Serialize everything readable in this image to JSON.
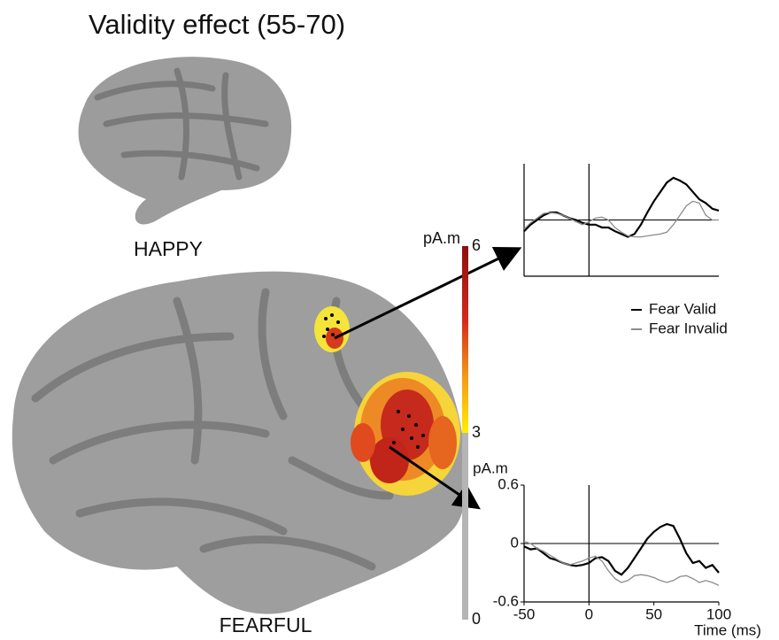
{
  "title": "Validity effect (55-70)",
  "brain_labels": [
    "HAPPY",
    "FEARFUL"
  ],
  "colorbar": {
    "label": "pA.m",
    "lim": [
      0,
      6
    ],
    "ticks": [
      0,
      3,
      6
    ]
  },
  "chart_data": [
    {
      "type": "line",
      "x": [
        -50,
        -45,
        -40,
        -35,
        -30,
        -25,
        -20,
        -15,
        -10,
        -5,
        0,
        5,
        10,
        15,
        20,
        25,
        30,
        35,
        40,
        45,
        50,
        55,
        60,
        65,
        70,
        75,
        80,
        85,
        90,
        95,
        100
      ],
      "xlim": [
        -50,
        100
      ],
      "ylim": [
        -0.6,
        0.6
      ],
      "legend": "right",
      "series": [
        {
          "name": "Fear Valid",
          "color": "#000000",
          "values": [
            -0.12,
            -0.05,
            0.0,
            0.05,
            0.08,
            0.08,
            0.05,
            0.02,
            0.0,
            -0.03,
            -0.05,
            -0.05,
            -0.08,
            -0.08,
            -0.12,
            -0.15,
            -0.18,
            -0.15,
            -0.05,
            0.08,
            0.2,
            0.3,
            0.4,
            0.45,
            0.42,
            0.38,
            0.3,
            0.22,
            0.18,
            0.12,
            0.1
          ]
        },
        {
          "name": "Fear Invalid",
          "color": "#8c8c8c",
          "values": [
            -0.1,
            -0.03,
            0.02,
            0.07,
            0.08,
            0.07,
            0.05,
            0.02,
            -0.02,
            -0.05,
            -0.02,
            0.02,
            0.03,
            0.0,
            -0.08,
            -0.13,
            -0.17,
            -0.18,
            -0.18,
            -0.17,
            -0.16,
            -0.15,
            -0.13,
            -0.05,
            0.05,
            0.15,
            0.2,
            0.18,
            0.05,
            0.0,
            0.0
          ]
        }
      ]
    },
    {
      "type": "line",
      "x": [
        -50,
        -45,
        -40,
        -35,
        -30,
        -25,
        -20,
        -15,
        -10,
        -5,
        0,
        5,
        10,
        15,
        20,
        25,
        30,
        35,
        40,
        45,
        50,
        55,
        60,
        65,
        70,
        75,
        80,
        85,
        90,
        95,
        100
      ],
      "xlim": [
        -50,
        100
      ],
      "ylim": [
        -0.6,
        0.6
      ],
      "xticks": [
        -50,
        0,
        50,
        100
      ],
      "yticks": [
        -0.6,
        0,
        0.6
      ],
      "xlabel": "Time (ms)",
      "ylabel": "pA.m",
      "series": [
        {
          "color": "#000000",
          "values": [
            -0.03,
            -0.06,
            -0.05,
            -0.1,
            -0.15,
            -0.17,
            -0.2,
            -0.22,
            -0.23,
            -0.22,
            -0.2,
            -0.15,
            -0.14,
            -0.18,
            -0.28,
            -0.32,
            -0.25,
            -0.15,
            -0.05,
            0.05,
            0.12,
            0.17,
            0.2,
            0.18,
            0.05,
            -0.1,
            -0.2,
            -0.18,
            -0.25,
            -0.22,
            -0.3
          ]
        },
        {
          "color": "#8c8c8c",
          "values": [
            0.02,
            0.0,
            -0.05,
            -0.08,
            -0.12,
            -0.16,
            -0.2,
            -0.22,
            -0.2,
            -0.18,
            -0.15,
            -0.13,
            -0.18,
            -0.28,
            -0.36,
            -0.4,
            -0.38,
            -0.33,
            -0.32,
            -0.33,
            -0.35,
            -0.38,
            -0.4,
            -0.38,
            -0.34,
            -0.33,
            -0.36,
            -0.4,
            -0.38,
            -0.4,
            -0.43
          ]
        }
      ]
    }
  ]
}
